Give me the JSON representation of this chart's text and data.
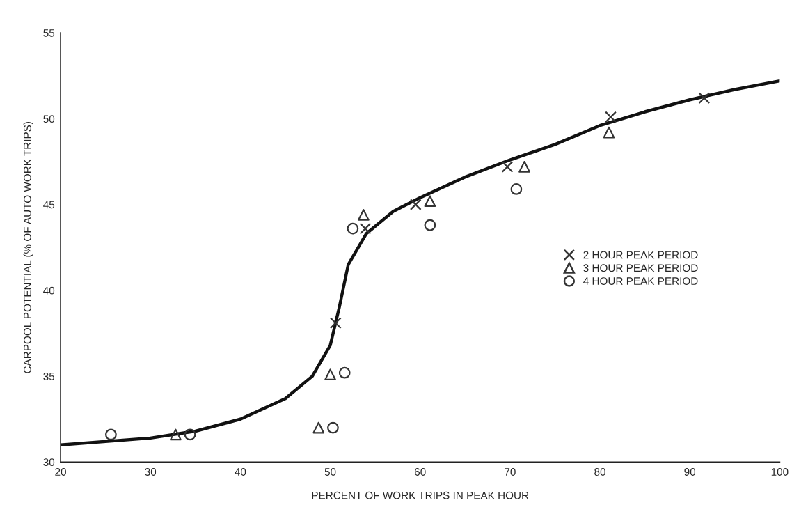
{
  "chart_data": {
    "type": "scatter",
    "xlabel": "PERCENT OF WORK TRIPS IN PEAK HOUR",
    "ylabel": "CARPOOL POTENTIAL (% OF AUTO WORK TRIPS)",
    "xlim": [
      20,
      100
    ],
    "xticks": [
      20,
      30,
      40,
      50,
      60,
      70,
      80,
      90,
      100
    ],
    "ylim": [
      30,
      55
    ],
    "yticks": [
      30,
      35,
      40,
      45,
      50,
      55
    ],
    "grid": false,
    "legend": "right",
    "series": [
      {
        "name": "2 HOUR PEAK PERIOD",
        "color": "#333333",
        "marker": "cross",
        "x": [
          50.6,
          53.9,
          59.5,
          69.7,
          81.2,
          91.6
        ],
        "values": [
          38.1,
          43.6,
          45.0,
          47.2,
          50.1,
          51.2
        ]
      },
      {
        "name": "3 HOUR PEAK PERIOD",
        "color": "#333333",
        "marker": "triangle",
        "x": [
          32.8,
          48.7,
          50.0,
          53.7,
          61.1,
          71.6,
          81.0
        ],
        "values": [
          31.6,
          32.0,
          35.1,
          44.4,
          45.2,
          47.2,
          49.2
        ]
      },
      {
        "name": "4 HOUR PEAK PERIOD",
        "color": "#333333",
        "marker": "circle",
        "x": [
          25.6,
          34.4,
          50.3,
          51.6,
          52.5,
          61.1,
          70.7
        ],
        "values": [
          31.6,
          31.6,
          32.0,
          35.2,
          43.6,
          43.8,
          45.9
        ]
      },
      {
        "type": "line",
        "color": "#111111",
        "line_style": "solid",
        "marker": "none",
        "x": [
          20,
          30,
          35,
          40,
          45,
          48,
          50,
          51,
          52,
          54,
          57,
          60,
          65,
          70,
          75,
          80,
          85,
          90,
          95,
          100
        ],
        "values": [
          31.0,
          31.4,
          31.8,
          32.5,
          33.7,
          35.0,
          36.8,
          39.0,
          41.5,
          43.3,
          44.6,
          45.4,
          46.6,
          47.6,
          48.5,
          49.6,
          50.4,
          51.1,
          51.7,
          52.2
        ]
      }
    ]
  }
}
